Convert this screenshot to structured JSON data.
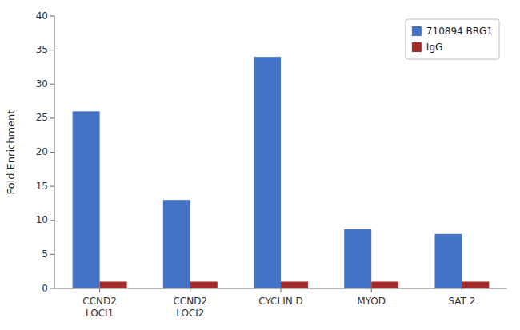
{
  "chart_data": {
    "type": "bar",
    "categories": [
      "CCND2\nLOCI1",
      "CCND2\nLOCI2",
      "CYCLIN D",
      "MYOD",
      "SAT 2"
    ],
    "series": [
      {
        "name": "710894 BRG1",
        "color": "#4472C4",
        "values": [
          26,
          13,
          34,
          8.7,
          8.0
        ]
      },
      {
        "name": "IgG",
        "color": "#A52A2A",
        "values": [
          1.0,
          1.0,
          1.0,
          1.0,
          1.0
        ]
      }
    ],
    "ylabel": "Fold Enrichment",
    "ylim": [
      0,
      40
    ],
    "yticks": [
      0,
      5,
      10,
      15,
      20,
      25,
      30,
      35,
      40
    ],
    "grid": false,
    "legend": "upper right"
  }
}
